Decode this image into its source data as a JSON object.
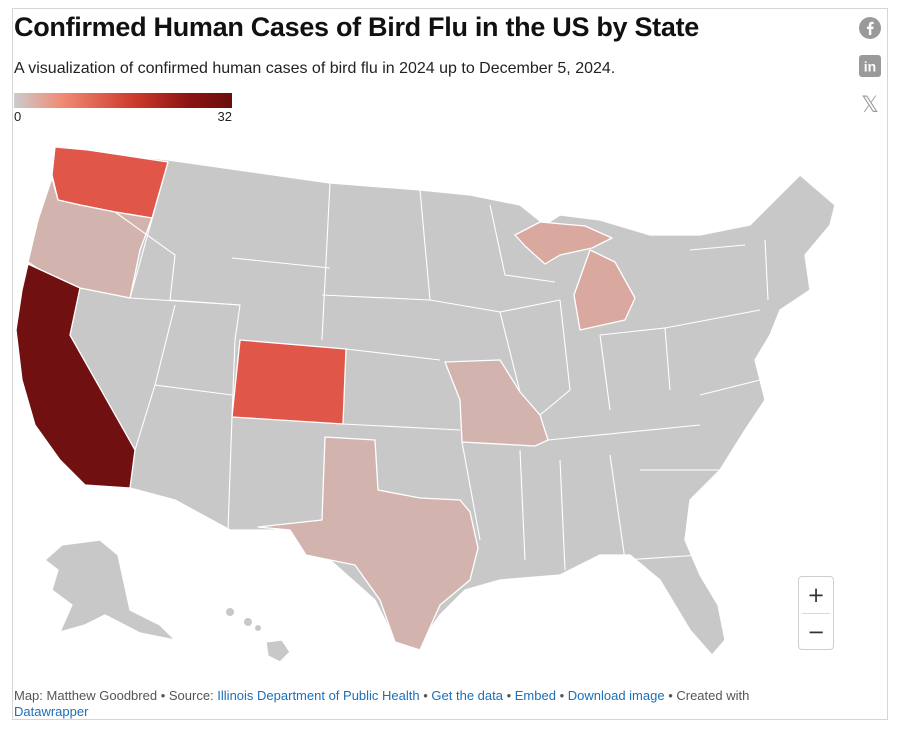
{
  "header": {
    "title": "Confirmed Human Cases of Bird Flu in the US by State",
    "subtitle": "A visualization of confirmed human cases of bird flu in 2024 up to December 5, 2024."
  },
  "share": [
    {
      "name": "facebook-icon",
      "icon": "facebook-icon"
    },
    {
      "name": "linkedin-icon",
      "icon": "linkedin-icon",
      "glyph": "in"
    },
    {
      "name": "x-icon",
      "icon": "x-icon",
      "glyph": "𝕏"
    }
  ],
  "legend": {
    "min": "0",
    "max": "32"
  },
  "map": {
    "default_color": "#c8c8c8",
    "highlighted": [
      {
        "state": "California",
        "color": "#701010"
      },
      {
        "state": "Washington",
        "color": "#e0574a"
      },
      {
        "state": "Colorado",
        "color": "#e0574a"
      },
      {
        "state": "Oregon",
        "color": "#d3b3ad"
      },
      {
        "state": "Michigan",
        "color": "#d9a89e"
      },
      {
        "state": "Missouri",
        "color": "#d3b3ad"
      },
      {
        "state": "Texas",
        "color": "#d3b3ad"
      }
    ]
  },
  "zoom": {
    "in_label": "+",
    "out_label": "−"
  },
  "footer": {
    "map_credit": "Map: Matthew Goodbred",
    "source_prefix": "Source:",
    "source_link": "Illinois Department of Public Health",
    "get_data": "Get the data",
    "embed": "Embed",
    "download": "Download image",
    "created_with": "Created with",
    "tool": "Datawrapper",
    "sep": " • "
  }
}
